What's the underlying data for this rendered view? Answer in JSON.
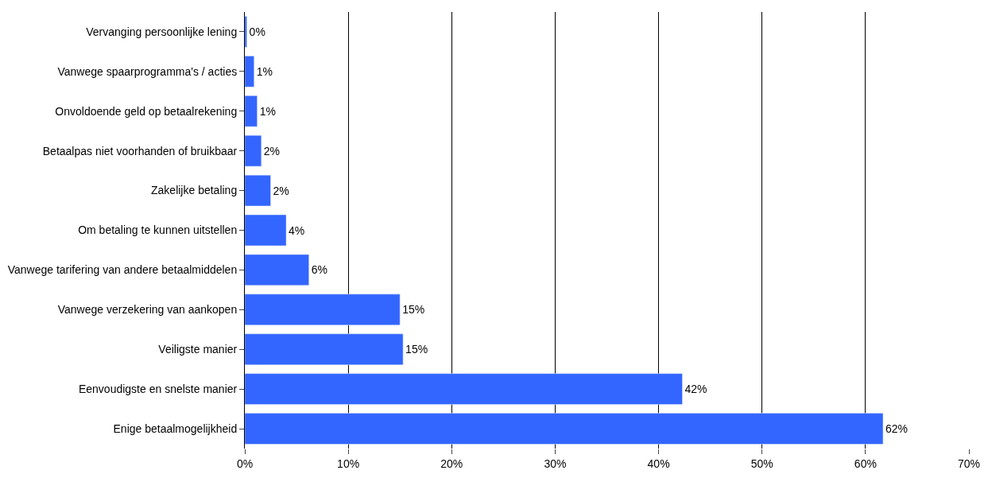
{
  "chart_data": {
    "type": "bar",
    "orientation": "horizontal",
    "categories": [
      "Vervanging persoonlijke lening",
      "Vanwege spaarprogramma's / acties",
      "Onvoldoende geld op betaalrekening",
      "Betaalpas niet voorhanden of bruikbaar",
      "Zakelijke betaling",
      "Om betaling te kunnen uitstellen",
      "Vanwege tarifering van andere betaalmiddelen",
      "Vanwege verzekering van aankopen",
      "Veiligste manier",
      "Eenvoudigste en snelste manier",
      "Enige betaalmogelijkheid"
    ],
    "values": [
      0.2,
      0.9,
      1.2,
      1.6,
      2.5,
      4.0,
      6.2,
      15.0,
      15.3,
      42.3,
      61.7
    ],
    "value_labels": [
      "0%",
      "1%",
      "1%",
      "2%",
      "2%",
      "4%",
      "6%",
      "15%",
      "15%",
      "42%",
      "62%"
    ],
    "color": "#3366ff",
    "xlim": [
      0,
      70
    ],
    "xticks": [
      {
        "value": 0,
        "label": "0%"
      },
      {
        "value": 10,
        "label": "10%"
      },
      {
        "value": 20,
        "label": "20%"
      },
      {
        "value": 30,
        "label": "30%"
      },
      {
        "value": 40,
        "label": "40%"
      },
      {
        "value": 50,
        "label": "50%"
      },
      {
        "value": 60,
        "label": "60%"
      },
      {
        "value": 70,
        "label": "70%"
      }
    ],
    "grid": "x",
    "legend": false
  }
}
